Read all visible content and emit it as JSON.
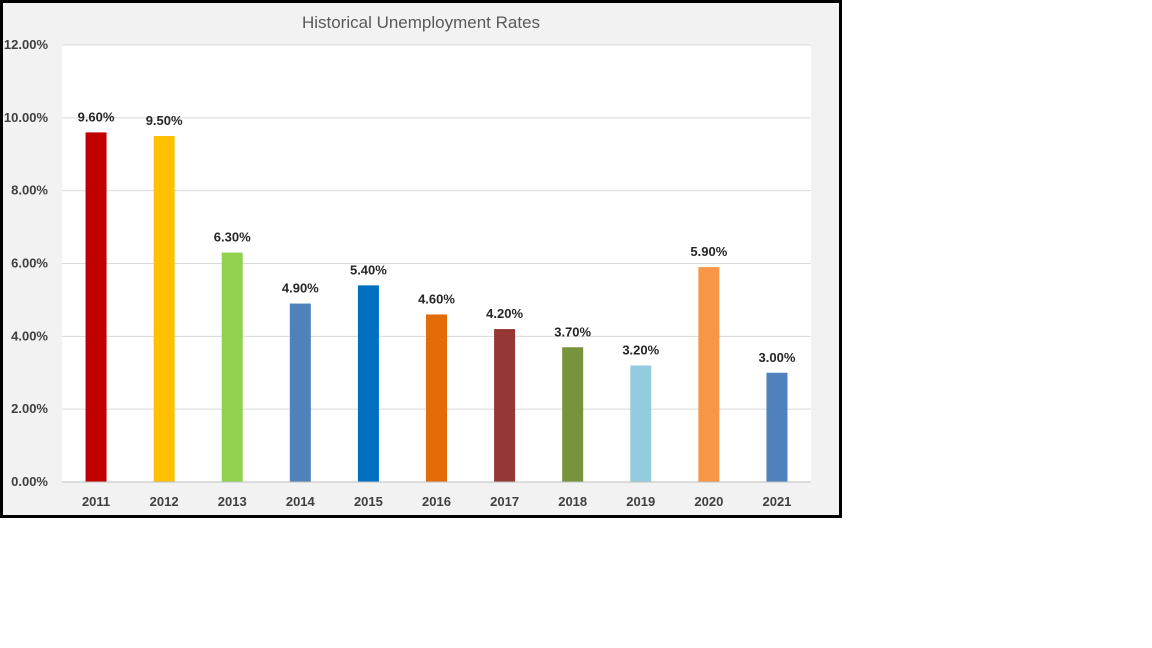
{
  "chart_data": {
    "type": "bar",
    "title": "Historical Unemployment Rates",
    "xlabel": "",
    "ylabel": "",
    "categories": [
      "2011",
      "2012",
      "2013",
      "2014",
      "2015",
      "2016",
      "2017",
      "2018",
      "2019",
      "2020",
      "2021"
    ],
    "values": [
      9.6,
      9.5,
      6.3,
      4.9,
      5.4,
      4.6,
      4.2,
      3.7,
      3.2,
      5.9,
      3.0
    ],
    "data_labels": [
      "9.60%",
      "9.50%",
      "6.30%",
      "4.90%",
      "5.40%",
      "4.60%",
      "4.20%",
      "3.70%",
      "3.20%",
      "5.90%",
      "3.00%"
    ],
    "bar_colors": [
      "#c00000",
      "#ffc000",
      "#92d050",
      "#4f81bd",
      "#0070c0",
      "#e36c09",
      "#953735",
      "#77933c",
      "#93cddd",
      "#f79646",
      "#4f81bd"
    ],
    "ylim": [
      0,
      12
    ],
    "yticks": [
      0,
      2,
      4,
      6,
      8,
      10,
      12
    ],
    "ytick_labels": [
      "0.00%",
      "2.00%",
      "4.00%",
      "6.00%",
      "8.00%",
      "10.00%",
      "12.00%"
    ],
    "grid": true,
    "legend": "none"
  }
}
